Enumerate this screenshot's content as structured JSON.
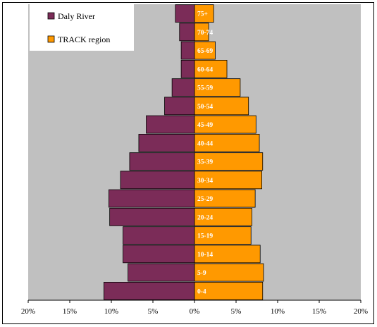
{
  "chart_data": {
    "type": "bar",
    "orientation": "horizontal-pyramid",
    "categories": [
      "0-4",
      "5-9",
      "10-14",
      "15-19",
      "20-24",
      "25-29",
      "30-34",
      "35-39",
      "40-44",
      "45-49",
      "50-54",
      "55-59",
      "60-64",
      "65-69",
      "70-74",
      "75+"
    ],
    "series": [
      {
        "name": "Daly River",
        "side": "left",
        "color": "#7b2c58",
        "values": [
          10.9,
          8.0,
          8.6,
          8.6,
          10.2,
          10.3,
          8.9,
          7.8,
          6.7,
          5.8,
          3.6,
          2.7,
          1.6,
          1.6,
          1.8,
          2.3
        ]
      },
      {
        "name": "TRACK region",
        "side": "right",
        "color": "#ff9900",
        "values": [
          8.2,
          8.3,
          7.9,
          6.8,
          6.9,
          7.3,
          8.1,
          8.2,
          7.8,
          7.4,
          6.5,
          5.5,
          3.9,
          2.5,
          1.7,
          2.3
        ]
      }
    ],
    "xlim": [
      -20,
      20
    ],
    "xticks": [
      -20,
      -15,
      -10,
      -5,
      0,
      5,
      10,
      15,
      20
    ],
    "xtick_labels": [
      "20%",
      "15%",
      "10%",
      "5%",
      "0%",
      "5%",
      "10%",
      "15%",
      "20%"
    ],
    "title": "",
    "xlabel": "",
    "ylabel": "",
    "grid": false,
    "plot_background": "#c0c0c0",
    "legend": {
      "placement": "top-left",
      "entries": [
        "Daly River",
        "TRACK region"
      ]
    }
  }
}
